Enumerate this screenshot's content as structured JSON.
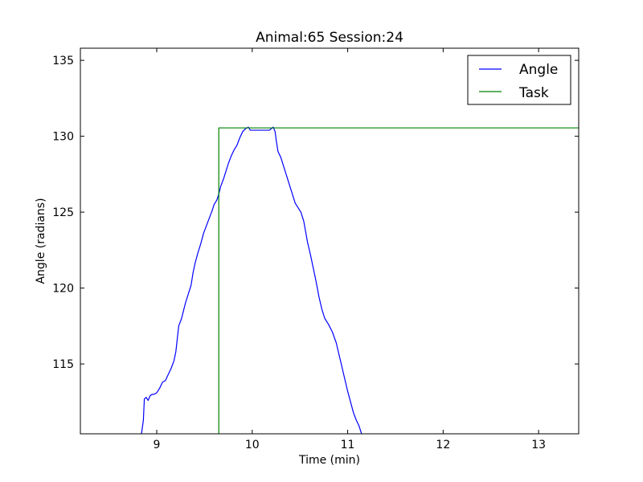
{
  "chart_data": {
    "type": "line",
    "title": "Animal:65  Session:24",
    "xlabel": "Time (min)",
    "ylabel": "Angle (radians)",
    "xlim": [
      8.2,
      13.42
    ],
    "ylim": [
      110.4,
      135.8
    ],
    "xticks": [
      "9",
      "10",
      "11",
      "12",
      "13"
    ],
    "xtick_values": [
      9,
      10,
      11,
      12,
      13
    ],
    "yticks": [
      "115",
      "120",
      "125",
      "130",
      "135"
    ],
    "ytick_values": [
      115,
      120,
      125,
      130,
      135
    ],
    "grid": false,
    "legend_position": "top-right",
    "series": [
      {
        "name": "Angle",
        "color": "#0000ff",
        "x": [
          8.84,
          8.86,
          8.87,
          8.89,
          8.91,
          8.93,
          8.95,
          8.97,
          9.0,
          9.03,
          9.06,
          9.09,
          9.12,
          9.15,
          9.18,
          9.2,
          9.23,
          9.26,
          9.28,
          9.3,
          9.33,
          9.36,
          9.38,
          9.4,
          9.43,
          9.46,
          9.49,
          9.52,
          9.55,
          9.58,
          9.6,
          9.63,
          9.65,
          9.67,
          9.7,
          9.73,
          9.75,
          9.78,
          9.81,
          9.84,
          9.87,
          9.9,
          9.93,
          9.96,
          9.98,
          9.99,
          10.01,
          10.04,
          10.1,
          10.18,
          10.22,
          10.24,
          10.25,
          10.27,
          10.3,
          10.33,
          10.36,
          10.39,
          10.42,
          10.45,
          10.48,
          10.51,
          10.54,
          10.56,
          10.58,
          10.61,
          10.64,
          10.67,
          10.7,
          10.73,
          10.76,
          10.8,
          10.84,
          10.88,
          10.91,
          10.94,
          10.97,
          11.0,
          11.03,
          11.06,
          11.09,
          11.12,
          11.14,
          11.16,
          11.18,
          11.2,
          11.22,
          11.24,
          11.25
        ],
        "y": [
          110.4,
          111.3,
          112.7,
          112.8,
          112.6,
          112.9,
          113.0,
          113.0,
          113.1,
          113.4,
          113.8,
          113.9,
          114.3,
          114.7,
          115.2,
          115.8,
          117.5,
          118.0,
          118.5,
          119.0,
          119.6,
          120.2,
          121.0,
          121.6,
          122.3,
          122.9,
          123.6,
          124.1,
          124.6,
          125.1,
          125.5,
          125.8,
          126.2,
          126.7,
          127.2,
          127.8,
          128.2,
          128.7,
          129.1,
          129.4,
          129.9,
          130.3,
          130.5,
          130.6,
          130.4,
          130.4,
          130.4,
          130.4,
          130.4,
          130.4,
          130.6,
          130.3,
          129.8,
          129.0,
          128.6,
          128.0,
          127.4,
          126.8,
          126.2,
          125.6,
          125.3,
          125.0,
          124.4,
          123.7,
          123.0,
          122.2,
          121.3,
          120.4,
          119.4,
          118.6,
          118.0,
          117.6,
          117.1,
          116.4,
          115.6,
          114.8,
          114.0,
          113.2,
          112.5,
          111.8,
          111.3,
          110.9,
          110.5,
          110.2,
          110.0,
          110.0,
          110.0,
          110.0,
          110.0
        ]
      },
      {
        "name": "Task",
        "color": "#008000",
        "x": [
          9.65,
          9.65,
          13.42
        ],
        "y": [
          110.4,
          130.55,
          130.55
        ]
      }
    ]
  }
}
